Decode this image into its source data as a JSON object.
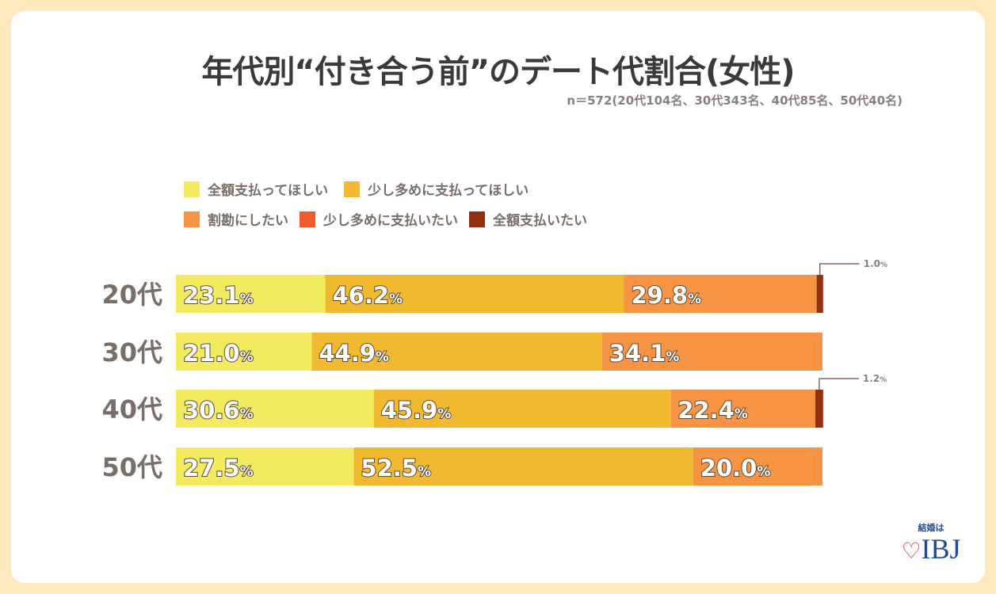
{
  "chart_data": {
    "type": "bar",
    "orientation": "horizontal",
    "stacked": true,
    "title": "年代別“付き合う前”のデート代割合(女性)",
    "subtitle": "n＝572(20代104名、30代343名、40代85名、50代40名)",
    "categories": [
      "20代",
      "30代",
      "40代",
      "50代"
    ],
    "series": [
      {
        "name": "全額支払ってほしい",
        "color": "#f3eb5f",
        "values": [
          23.1,
          21.0,
          30.6,
          27.5
        ]
      },
      {
        "name": "少し多めに支払ってほしい",
        "color": "#f0b92f",
        "values": [
          46.2,
          44.9,
          45.9,
          52.5
        ]
      },
      {
        "name": "割勘にしたい",
        "color": "#f79444",
        "values": [
          29.8,
          34.1,
          22.4,
          20.0
        ]
      },
      {
        "name": "少し多めに支払いたい",
        "color": "#f15a2a",
        "values": [
          0,
          0,
          0,
          0
        ]
      },
      {
        "name": "全額支払いたい",
        "color": "#93300f",
        "values": [
          1.0,
          0,
          1.2,
          0
        ]
      }
    ],
    "unit": "%",
    "legend": "top-left",
    "grid": false
  },
  "logo": {
    "tagline": "結婚は",
    "name": "IBJ"
  }
}
